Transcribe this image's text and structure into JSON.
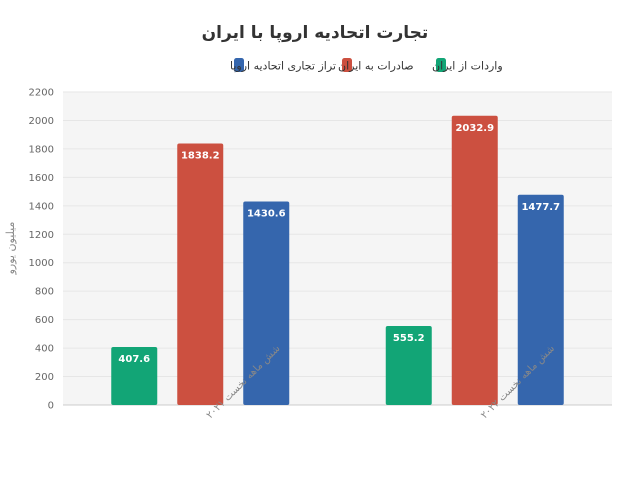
{
  "chart_data": {
    "type": "bar",
    "title": "تجارت اتحادیه اروپا با ایران",
    "ylabel": "میلیون یورو",
    "xlabel": "",
    "ylim": [
      0,
      2200
    ],
    "yticks": [
      0,
      200,
      400,
      600,
      800,
      1000,
      1200,
      1400,
      1600,
      1800,
      2000,
      2200
    ],
    "grid": true,
    "legend_position": "top-center",
    "categories": [
      "شش ماهه نخست ۲۰۲۱",
      "شش ماهه نخست ۲۰۲۲"
    ],
    "series": [
      {
        "name": "واردات از ایران",
        "color": "#12a576",
        "values": [
          407.6,
          555.2
        ]
      },
      {
        "name": "صادرات به ایران",
        "color": "#cc5040",
        "values": [
          1838.2,
          2032.9
        ]
      },
      {
        "name": "تراز تجاری اتحادیه اروپا",
        "color": "#3566ad",
        "values": [
          1430.6,
          1477.7
        ]
      }
    ]
  }
}
